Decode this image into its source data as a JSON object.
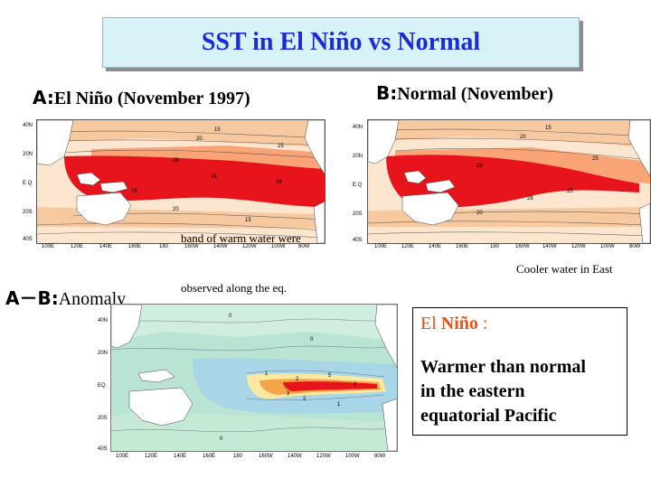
{
  "slide": {
    "title": "SST in El Niño vs Normal"
  },
  "panel_a": {
    "prefix": "A:",
    "label": "El Niño (November 1997)",
    "lat_ticks": [
      "40N",
      "20N",
      "E Q",
      "20S",
      "40S"
    ],
    "lon_ticks": [
      "100E",
      "120E",
      "140E",
      "160E",
      "180",
      "160W",
      "140W",
      "120W",
      "100W",
      "80W"
    ],
    "contour_labels": [
      "15",
      "20",
      "25",
      "28",
      "26",
      "28",
      "25",
      "20",
      "15"
    ]
  },
  "panel_b": {
    "prefix": "B:",
    "label": "Normal (November)",
    "lat_ticks": [
      "40N",
      "20N",
      "E Q",
      "20S",
      "40S"
    ],
    "lon_ticks": [
      "100E",
      "120E",
      "140E",
      "160E",
      "180",
      "160W",
      "140W",
      "120W",
      "100W",
      "80W"
    ],
    "contour_labels": [
      "15",
      "20",
      "25",
      "28",
      "25",
      "20",
      "28"
    ]
  },
  "panel_c": {
    "prefix": "A－B:",
    "label": "Anomaly",
    "lat_ticks": [
      "40N",
      "20N",
      "EQ",
      "20S",
      "40S"
    ],
    "lon_ticks": [
      "100E",
      "120E",
      "140E",
      "160E",
      "180",
      "160W",
      "140W",
      "120W",
      "100W",
      "80W"
    ],
    "contour_labels": [
      "0",
      "0",
      "1",
      "2",
      "3",
      "4",
      "5",
      "2",
      "1",
      "0"
    ]
  },
  "annotations": {
    "warm_band_line1": "band of warm water were",
    "warm_band_line2": "observed along the eq.",
    "cooler_east": "Cooler water in East"
  },
  "callout": {
    "head_a": "El ",
    "head_b": "Niño",
    "head_c": " :",
    "body_line1": "Warmer than normal",
    "body_line2": "in the eastern",
    "body_line3": "equatorial Pacific"
  },
  "colors": {
    "title_text": "#1c2bd8",
    "title_bg": "#d8f3f8",
    "warm_red": "#e8141c",
    "callout_accent": "#f34f0c"
  }
}
